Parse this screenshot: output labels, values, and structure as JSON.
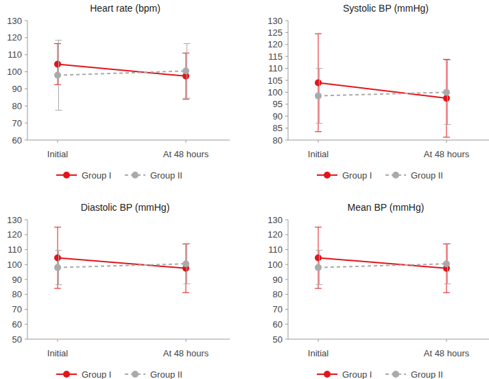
{
  "chart_data": [
    {
      "type": "line",
      "title": "Heart rate (bpm)",
      "categories": [
        "Initial",
        "At 48 hours"
      ],
      "ylim": [
        60,
        130
      ],
      "yticks": [
        60,
        70,
        80,
        90,
        100,
        110,
        120,
        130
      ],
      "legend": "bottom",
      "series": [
        {
          "name": "Group I",
          "color": "#e3141b",
          "line_style": "solid",
          "marker": "circle",
          "values": [
            104.5,
            97.5
          ],
          "errors": [
            12,
            13.5
          ]
        },
        {
          "name": "Group II",
          "color": "#aaaaaa",
          "line_style": "dashed",
          "marker": "circle",
          "values": [
            98,
            100.5
          ],
          "errors": [
            20.5,
            16
          ]
        }
      ]
    },
    {
      "type": "line",
      "title": "Systolic BP (mmHg)",
      "categories": [
        "Initial",
        "At 48 hours"
      ],
      "ylim": [
        80,
        130
      ],
      "yticks": [
        80,
        85,
        90,
        95,
        100,
        105,
        110,
        115,
        120,
        125,
        130
      ],
      "legend": "bottom",
      "series": [
        {
          "name": "Group I",
          "color": "#e3141b",
          "line_style": "solid",
          "marker": "circle",
          "values": [
            104,
            97.5
          ],
          "errors": [
            20.5,
            16.3
          ]
        },
        {
          "name": "Group II",
          "color": "#aaaaaa",
          "line_style": "dashed",
          "marker": "circle",
          "values": [
            98.5,
            100
          ],
          "errors": [
            11.5,
            13.5
          ]
        }
      ]
    },
    {
      "type": "line",
      "title": "Diastolic BP (mmHg)",
      "categories": [
        "Initial",
        "At 48 hours"
      ],
      "ylim": [
        50,
        130
      ],
      "yticks": [
        50,
        60,
        70,
        80,
        90,
        100,
        110,
        120,
        130
      ],
      "legend": "bottom",
      "series": [
        {
          "name": "Group I",
          "color": "#e3141b",
          "line_style": "solid",
          "marker": "circle",
          "values": [
            104.5,
            97.5
          ],
          "errors": [
            20.5,
            16.3
          ]
        },
        {
          "name": "Group II",
          "color": "#aaaaaa",
          "line_style": "dashed",
          "marker": "circle",
          "values": [
            98,
            100.5
          ],
          "errors": [
            11.5,
            13.5
          ]
        }
      ]
    },
    {
      "type": "line",
      "title": "Mean BP (mmHg)",
      "categories": [
        "Initial",
        "At 48 hours"
      ],
      "ylim": [
        50,
        130
      ],
      "yticks": [
        50,
        60,
        70,
        80,
        90,
        100,
        110,
        120,
        130
      ],
      "legend": "bottom",
      "series": [
        {
          "name": "Group I",
          "color": "#e3141b",
          "line_style": "solid",
          "marker": "circle",
          "values": [
            104.5,
            97.5
          ],
          "errors": [
            20.5,
            16.3
          ]
        },
        {
          "name": "Group II",
          "color": "#aaaaaa",
          "line_style": "dashed",
          "marker": "circle",
          "values": [
            98,
            100.5
          ],
          "errors": [
            11.5,
            13.5
          ]
        }
      ]
    }
  ]
}
